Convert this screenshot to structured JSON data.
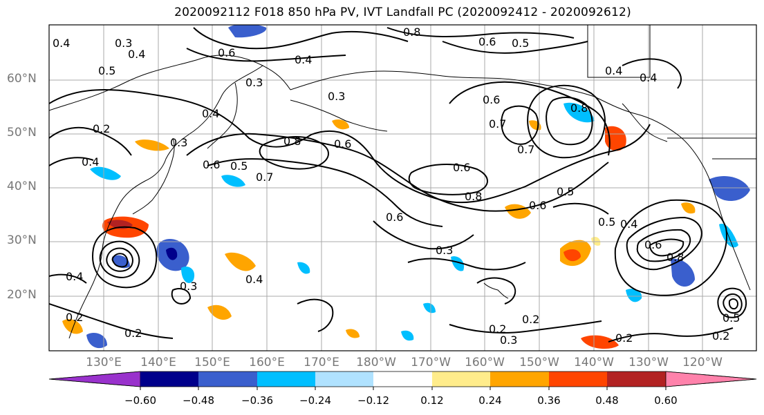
{
  "title": "2020092112 F018 850 hPa PV, IVT Landfall PC (2020092412 - 2020092612)",
  "lat_labels": [
    "60°N",
    "50°N",
    "40°N",
    "30°N",
    "20°N"
  ],
  "lon_labels": [
    "130°E",
    "140°E",
    "150°E",
    "160°E",
    "170°E",
    "180°W",
    "170°W",
    "160°W",
    "150°W",
    "140°W",
    "130°W",
    "120°W"
  ],
  "colorbar": {
    "tick_labels": [
      "−0.60",
      "−0.48",
      "−0.36",
      "−0.24",
      "−0.12",
      "0.12",
      "0.24",
      "0.36",
      "0.48",
      "0.60"
    ],
    "colors": [
      "#9932cc",
      "#00008b",
      "#3a5fcd",
      "#00bfff",
      "#b0e2ff",
      "#ffffff",
      "#ffec8b",
      "#ffa500",
      "#ff4500",
      "#b22222",
      "#ff82ab"
    ]
  },
  "contour_labels": [
    "0.4",
    "0.3",
    "0.4",
    "0.5",
    "0.6",
    "0.8",
    "0.6",
    "0.5",
    "0.4",
    "0.3",
    "0.4",
    "0.3",
    "0.6",
    "0.7",
    "0.8",
    "0.4",
    "0.2",
    "0.4",
    "0.3",
    "0.6",
    "0.5",
    "0.7",
    "0.8",
    "0.6",
    "0.6",
    "0.8",
    "0.5",
    "0.6",
    "0.7",
    "0.6",
    "0.5",
    "0.4",
    "0.6",
    "0.8",
    "0.3",
    "0.4",
    "0.3",
    "0.2",
    "0.2",
    "0.3",
    "0.2",
    "0.2",
    "0.4",
    "0.2",
    "0.2",
    "0.5",
    "0.4"
  ]
}
